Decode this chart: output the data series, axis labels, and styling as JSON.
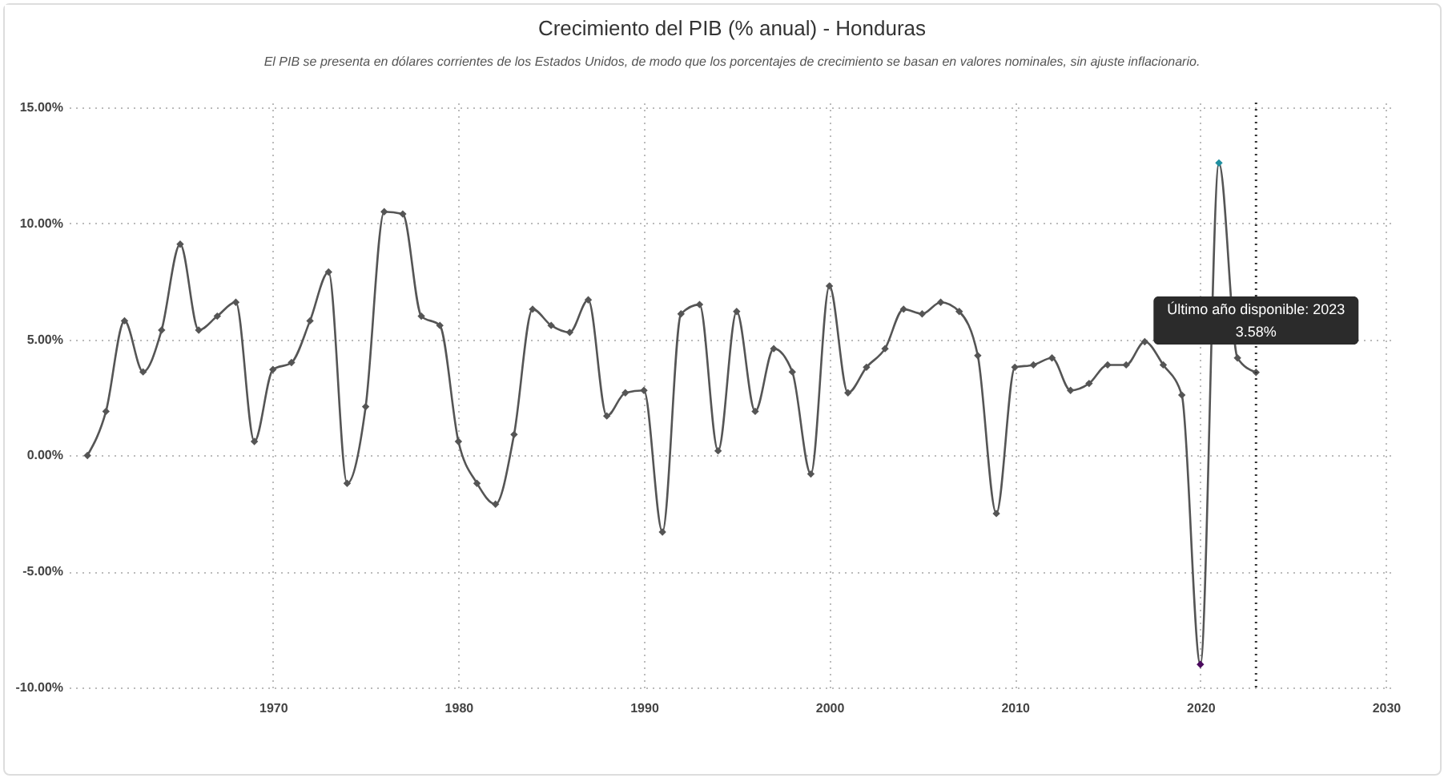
{
  "chart_data": {
    "type": "line",
    "title": "Crecimiento del PIB (% anual) - Honduras",
    "subtitle": "El PIB se presenta en dólares corrientes de los Estados Unidos, de modo que los porcentajes de crecimiento se basan en valores nominales, sin ajuste inflacionario.",
    "x": [
      1960,
      1961,
      1962,
      1963,
      1964,
      1965,
      1966,
      1967,
      1968,
      1969,
      1970,
      1971,
      1972,
      1973,
      1974,
      1975,
      1976,
      1977,
      1978,
      1979,
      1980,
      1981,
      1982,
      1983,
      1984,
      1985,
      1986,
      1987,
      1988,
      1989,
      1990,
      1991,
      1992,
      1993,
      1994,
      1995,
      1996,
      1997,
      1998,
      1999,
      2000,
      2001,
      2002,
      2003,
      2004,
      2005,
      2006,
      2007,
      2008,
      2009,
      2010,
      2011,
      2012,
      2013,
      2014,
      2015,
      2016,
      2017,
      2018,
      2019,
      2020,
      2021,
      2022,
      2023
    ],
    "series": [
      {
        "color": "#555555",
        "values": [
          0,
          1.9,
          5.8,
          3.6,
          5.4,
          9.1,
          5.4,
          6.0,
          6.6,
          0.6,
          3.7,
          4.0,
          5.8,
          7.9,
          -1.2,
          2.1,
          10.5,
          10.4,
          6.0,
          5.6,
          0.6,
          -1.2,
          -2.1,
          0.9,
          6.3,
          5.6,
          5.3,
          6.7,
          1.7,
          2.7,
          2.8,
          -3.3,
          6.1,
          6.5,
          0.2,
          6.2,
          1.9,
          4.6,
          3.6,
          -0.8,
          7.3,
          2.7,
          3.8,
          4.6,
          6.3,
          6.1,
          6.6,
          6.2,
          4.3,
          -2.5,
          3.8,
          3.9,
          4.2,
          2.8,
          3.1,
          3.9,
          3.9,
          4.9,
          3.9,
          2.6,
          -9.0,
          12.6,
          4.2,
          3.58
        ],
        "colors": [
          "#555555",
          "#555555",
          "#555555",
          "#555555",
          "#555555",
          "#555555",
          "#555555",
          "#555555",
          "#555555",
          "#555555",
          "#555555",
          "#555555",
          "#555555",
          "#555555",
          "#555555",
          "#555555",
          "#555555",
          "#555555",
          "#555555",
          "#555555",
          "#555555",
          "#555555",
          "#555555",
          "#555555",
          "#555555",
          "#555555",
          "#555555",
          "#555555",
          "#555555",
          "#555555",
          "#555555",
          "#555555",
          "#555555",
          "#555555",
          "#555555",
          "#555555",
          "#555555",
          "#555555",
          "#555555",
          "#555555",
          "#555555",
          "#555555",
          "#555555",
          "#555555",
          "#555555",
          "#555555",
          "#555555",
          "#555555",
          "#555555",
          "#555555",
          "#555555",
          "#555555",
          "#555555",
          "#555555",
          "#555555",
          "#555555",
          "#555555",
          "#555555",
          "#555555",
          "#555555",
          "#4b0a5e",
          "#1f8fa0",
          "#555555",
          "#555555"
        ]
      }
    ],
    "xlim": [
      1959,
      2030.5
    ],
    "xticks": [
      1970,
      1980,
      1990,
      2000,
      2010,
      2020,
      2030
    ],
    "ylim": [
      -10.2,
      15.2
    ],
    "yticks": [
      {
        "value": -10,
        "label": "-10.00%"
      },
      {
        "value": -5,
        "label": "-5.00%"
      },
      {
        "value": 0,
        "label": "0.00%"
      },
      {
        "value": 5,
        "label": "5.00%"
      },
      {
        "value": 10,
        "label": "10.00%"
      },
      {
        "value": 15,
        "label": "15.00%"
      }
    ],
    "grid": true,
    "marker": "diamond",
    "line_style": "solid",
    "ref_lines": [
      {
        "axis": "x",
        "value": 2023,
        "label": "Último año disponible: 2023",
        "color": "#333333",
        "line_style": "dotted"
      }
    ],
    "annotations": [
      "3.58%"
    ]
  }
}
